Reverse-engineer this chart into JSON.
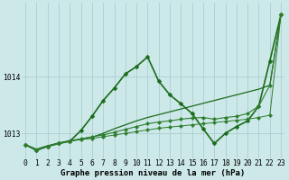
{
  "title": "Graphe pression niveau de la mer (hPa)",
  "ylabel_ticks": [
    1013,
    1014
  ],
  "ylim": [
    1012.55,
    1015.3
  ],
  "xlim": [
    -0.3,
    23.3
  ],
  "bg_color": "#cce8e8",
  "grid_color": "#aacfcf",
  "series": [
    {
      "y": [
        1012.8,
        1012.72,
        1012.78,
        1012.83,
        1012.87,
        1012.9,
        1012.93,
        1013.0,
        1013.08,
        1013.15,
        1013.22,
        1013.28,
        1013.33,
        1013.38,
        1013.43,
        1013.48,
        1013.53,
        1013.58,
        1013.63,
        1013.68,
        1013.73,
        1013.78,
        1013.85,
        1015.1
      ],
      "color": "#1a6b1a",
      "lw": 0.9,
      "marker": null,
      "ms": 0
    },
    {
      "y": [
        1012.8,
        1012.7,
        1012.77,
        1012.82,
        1012.86,
        1013.05,
        1013.3,
        1013.58,
        1013.8,
        1014.05,
        1014.18,
        1014.35,
        1013.92,
        1013.68,
        1013.52,
        1013.35,
        1013.08,
        1012.82,
        1013.0,
        1013.12,
        1013.22,
        1013.48,
        1014.28,
        1015.1
      ],
      "color": "#1a6b1a",
      "lw": 1.2,
      "marker": "D",
      "ms": 2.5
    },
    {
      "y": [
        1012.8,
        1012.7,
        1012.77,
        1012.82,
        1012.86,
        1012.9,
        1012.94,
        1012.97,
        1013.02,
        1013.07,
        1013.12,
        1013.17,
        1013.2,
        1013.22,
        1013.25,
        1013.27,
        1013.28,
        1013.25,
        1013.28,
        1013.3,
        1013.35,
        1013.48,
        1013.85,
        1015.1
      ],
      "color": "#2e7d2e",
      "lw": 0.8,
      "marker": "D",
      "ms": 2.2
    },
    {
      "y": [
        1012.8,
        1012.7,
        1012.77,
        1012.82,
        1012.86,
        1012.89,
        1012.91,
        1012.94,
        1012.97,
        1013.0,
        1013.03,
        1013.06,
        1013.09,
        1013.11,
        1013.13,
        1013.15,
        1013.17,
        1013.19,
        1013.21,
        1013.23,
        1013.25,
        1013.28,
        1013.32,
        1015.1
      ],
      "color": "#2e7d2e",
      "lw": 0.7,
      "marker": "D",
      "ms": 2.2
    }
  ],
  "font_name": "monospace",
  "label_fontsize": 6.5,
  "tick_fontsize": 5.8
}
